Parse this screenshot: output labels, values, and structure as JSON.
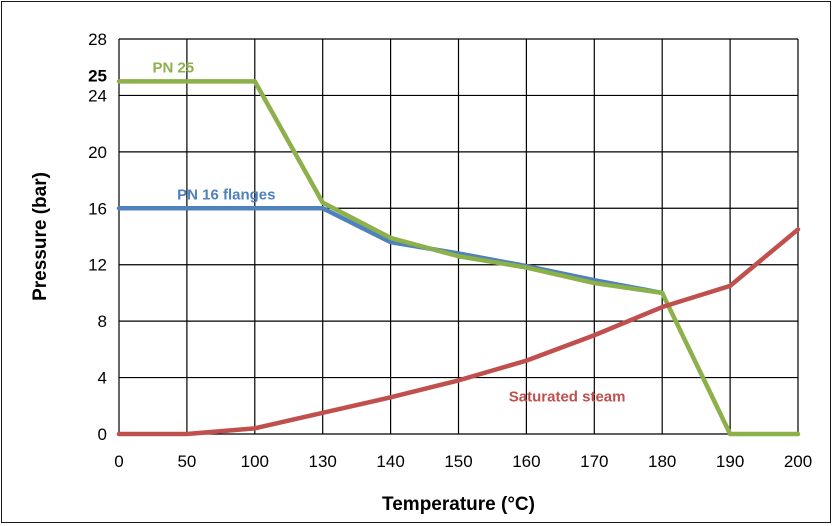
{
  "chart_data": {
    "type": "line",
    "title": "",
    "xlabel": "Temperature (°C)",
    "ylabel": "Pressure (bar)",
    "x_categories": [
      "0",
      "50",
      "100",
      "130",
      "140",
      "150",
      "160",
      "170",
      "180",
      "190",
      "200"
    ],
    "ylim": [
      0,
      28
    ],
    "yticks": [
      "0",
      "4",
      "8",
      "12",
      "16",
      "20",
      "24",
      "28"
    ],
    "grid": true,
    "extra_tick": {
      "label": "25",
      "value": 25,
      "color": "#8cb04a"
    },
    "series": [
      {
        "name": "PN 16 flanges",
        "color": "#4f81bd",
        "points": [
          [
            0,
            16
          ],
          [
            50,
            16
          ],
          [
            100,
            16
          ],
          [
            130,
            16
          ],
          [
            140,
            13.6
          ],
          [
            150,
            12.8
          ],
          [
            160,
            11.9
          ],
          [
            170,
            10.9
          ],
          [
            180,
            10
          ]
        ]
      },
      {
        "name": "PN 25",
        "color": "#8cb04a",
        "points": [
          [
            0,
            25
          ],
          [
            50,
            25
          ],
          [
            100,
            25
          ],
          [
            130,
            16.4
          ],
          [
            140,
            13.9
          ],
          [
            150,
            12.6
          ],
          [
            160,
            11.8
          ],
          [
            170,
            10.7
          ],
          [
            180,
            10
          ],
          [
            190,
            0
          ],
          [
            200,
            0
          ]
        ]
      },
      {
        "name": "Saturated steam",
        "color": "#c0504d",
        "points": [
          [
            0,
            0
          ],
          [
            50,
            0
          ],
          [
            100,
            0.4
          ],
          [
            130,
            1.5
          ],
          [
            140,
            2.6
          ],
          [
            150,
            3.8
          ],
          [
            160,
            5.2
          ],
          [
            170,
            7
          ],
          [
            180,
            9
          ],
          [
            190,
            10.5
          ],
          [
            200,
            14.5
          ]
        ]
      }
    ]
  }
}
